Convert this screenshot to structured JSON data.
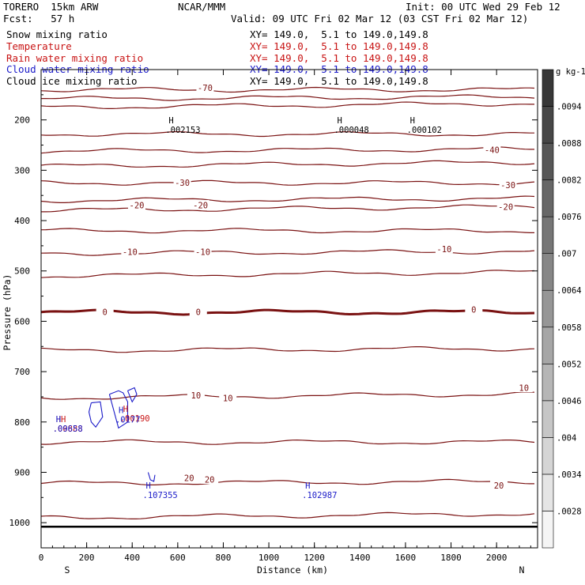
{
  "header": {
    "model": "TORERO  15km ARW",
    "center": "NCAR/MMM",
    "init": "Init: 00 UTC Wed 29 Feb 12",
    "fcst": "Fcst:   57 h",
    "valid": "Valid: 09 UTC Fri 02 Mar 12 (03 CST Fri 02 Mar 12)"
  },
  "fields": [
    {
      "name": "Snow mixing ratio",
      "xy": "XY= 149.0,  5.1 to 149.0,149.8",
      "color": "#000000"
    },
    {
      "name": "Temperature",
      "xy": "XY= 149.0,  5.1 to 149.0,149.8",
      "color": "#c81414"
    },
    {
      "name": "Rain water mixing ratio",
      "xy": "XY= 149.0,  5.1 to 149.0,149.8",
      "color": "#c81414"
    },
    {
      "name": "Cloud water mixing ratio",
      "xy": "XY= 149.0,  5.1 to 149.0,149.8",
      "color": "#1a1ac8"
    },
    {
      "name": "Cloud ice mixing ratio",
      "xy": "XY= 149.0,  5.1 to 149.0,149.8",
      "color": "#000000"
    }
  ],
  "chart_data": {
    "type": "cross-section contour",
    "xlabel": "Distance (km)",
    "ylabel": "Pressure (hPa)",
    "xlim": [
      0,
      2180
    ],
    "ylim": [
      1050,
      100
    ],
    "xticks": [
      "0",
      "200",
      "400",
      "600",
      "800",
      "1000",
      "1200",
      "1400",
      "1600",
      "1800",
      "2000"
    ],
    "xtick_values": [
      0,
      200,
      400,
      600,
      800,
      1000,
      1200,
      1400,
      1600,
      1800,
      2000
    ],
    "yticks": [
      "200",
      "300",
      "400",
      "500",
      "600",
      "700",
      "800",
      "900",
      "1000"
    ],
    "ytick_values": [
      200,
      300,
      400,
      500,
      600,
      700,
      800,
      900,
      1000
    ],
    "x_end_labels": {
      "left": "S",
      "right": "N"
    },
    "ground_pressure": 1008,
    "temperature_isotherms": [
      {
        "temp": -70,
        "pressure": 140,
        "label": "-70",
        "label_at": [
          [
            720,
            137
          ]
        ]
      },
      {
        "temp": -60,
        "pressure": 158
      },
      {
        "temp": -50,
        "pressure": 175
      },
      {
        "temp": -45,
        "pressure": 228
      },
      {
        "temp": -40,
        "pressure": 262,
        "label": "-40",
        "label_at": [
          [
            1980,
            260
          ]
        ]
      },
      {
        "temp": -35,
        "pressure": 292
      },
      {
        "temp": -30,
        "pressure": 325,
        "label": "-30",
        "label_at": [
          [
            620,
            325
          ],
          [
            2050,
            330
          ]
        ]
      },
      {
        "temp": -25,
        "pressure": 360
      },
      {
        "temp": -20,
        "pressure": 380,
        "label": "-20",
        "label_at": [
          [
            420,
            370
          ],
          [
            700,
            370
          ],
          [
            2040,
            373
          ]
        ]
      },
      {
        "temp": -15,
        "pressure": 420
      },
      {
        "temp": -10,
        "pressure": 465,
        "label": "-10",
        "label_at": [
          [
            390,
            463
          ],
          [
            710,
            463
          ],
          [
            1770,
            457
          ]
        ]
      },
      {
        "temp": -5,
        "pressure": 510
      },
      {
        "temp": 0,
        "pressure": 582,
        "label": "0",
        "label_at": [
          [
            280,
            582
          ],
          [
            690,
            582
          ],
          [
            1900,
            577
          ]
        ],
        "bold": true
      },
      {
        "temp": 5,
        "pressure": 658
      },
      {
        "temp": 10,
        "pressure": 752,
        "label": "10",
        "label_at": [
          [
            680,
            748
          ],
          [
            820,
            753
          ],
          [
            2120,
            733
          ]
        ]
      },
      {
        "temp": 15,
        "pressure": 840
      },
      {
        "temp": 20,
        "pressure": 922,
        "label": "20",
        "label_at": [
          [
            650,
            912
          ],
          [
            740,
            915
          ],
          [
            2010,
            927
          ]
        ]
      },
      {
        "temp": 25,
        "pressure": 990
      }
    ],
    "colorbar": {
      "unit": "g kg-1",
      "ticks": [
        ".0028",
        ".0034",
        ".004",
        ".0046",
        ".0052",
        ".0058",
        ".0064",
        ".007",
        ".0076",
        ".0082",
        ".0088",
        ".0094"
      ]
    },
    "maxima_markers": [
      {
        "label": "H",
        "value": ".002153",
        "x": 560,
        "p": 207,
        "color": "#000000"
      },
      {
        "label": "H",
        "value": ".000048",
        "x": 1300,
        "p": 207,
        "color": "#000000"
      },
      {
        "label": "H",
        "value": ".000102",
        "x": 1620,
        "p": 207,
        "color": "#000000"
      },
      {
        "label": "H",
        "value": ".107355",
        "x": 460,
        "p": 932,
        "color": "#1a1ac8"
      },
      {
        "label": "H",
        "value": ".102987",
        "x": 1160,
        "p": 932,
        "color": "#1a1ac8"
      },
      {
        "label": "HH",
        "value": ".00888",
        "x": 65,
        "p": 800,
        "color": "#c81414"
      },
      {
        "label": "H",
        "value": ".09658",
        "x": 65,
        "p": 800,
        "color": "#1a1ac8"
      },
      {
        "label": "H",
        "value": ".00190",
        "x": 360,
        "p": 780,
        "color": "#c81414"
      },
      {
        "label": "H",
        "value": ".0177",
        "x": 340,
        "p": 782,
        "color": "#1a1ac8"
      }
    ],
    "cloud_water_contours": [
      {
        "x": [
          220,
          260,
          270,
          240,
          220,
          210,
          220
        ],
        "p": [
          762,
          760,
          790,
          810,
          800,
          780,
          762
        ]
      },
      {
        "x": [
          300,
          340,
          360,
          380,
          380,
          340,
          300
        ],
        "p": [
          745,
          738,
          742,
          760,
          800,
          812,
          745
        ]
      },
      {
        "x": [
          380,
          410,
          420,
          400,
          380
        ],
        "p": [
          738,
          732,
          745,
          760,
          738
        ]
      },
      {
        "x": [
          470,
          480,
          495,
          500
        ],
        "p": [
          900,
          915,
          918,
          905
        ]
      }
    ]
  }
}
